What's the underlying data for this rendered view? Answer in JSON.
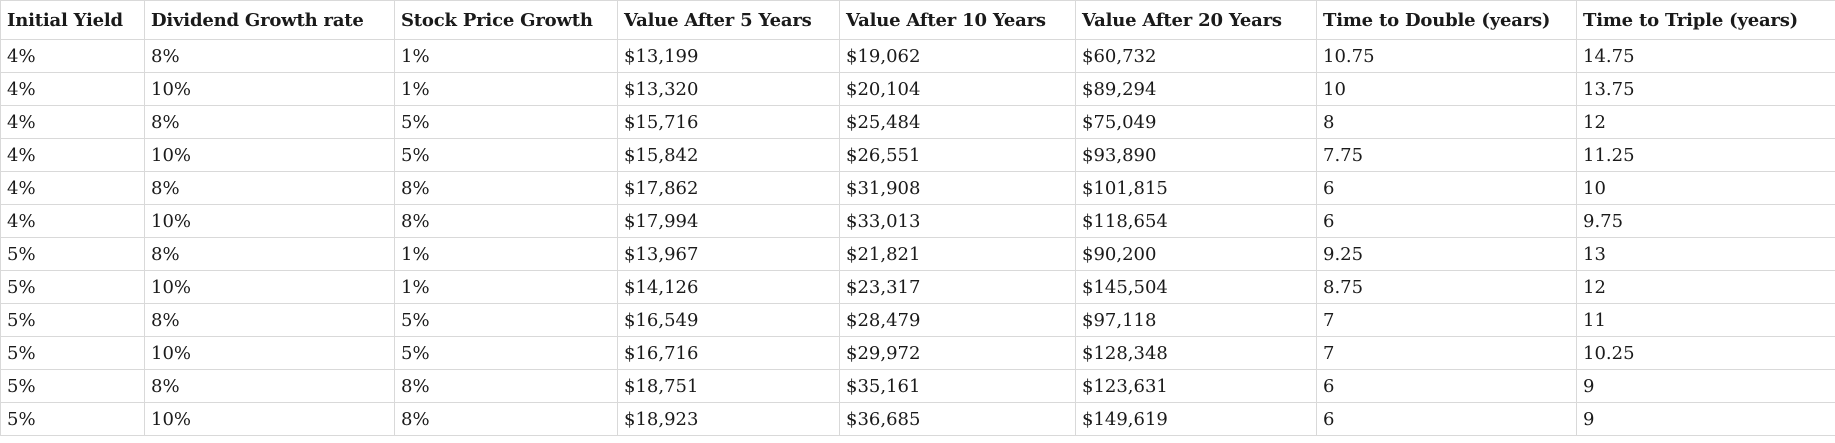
{
  "table": {
    "headers": [
      "Initial Yield",
      "Dividend Growth rate",
      "Stock Price Growth",
      "Value After 5 Years",
      "Value After 10 Years",
      "Value After 20 Years",
      "Time to Double (years)",
      "Time to Triple (years)"
    ],
    "rows": [
      [
        "4%",
        "8%",
        "1%",
        "$13,199",
        "$19,062",
        "$60,732",
        "10.75",
        "14.75"
      ],
      [
        "4%",
        "10%",
        "1%",
        "$13,320",
        "$20,104",
        "$89,294",
        "10",
        "13.75"
      ],
      [
        "4%",
        "8%",
        "5%",
        "$15,716",
        "$25,484",
        "$75,049",
        "8",
        "12"
      ],
      [
        "4%",
        "10%",
        "5%",
        "$15,842",
        "$26,551",
        "$93,890",
        "7.75",
        "11.25"
      ],
      [
        "4%",
        "8%",
        "8%",
        "$17,862",
        "$31,908",
        "$101,815",
        "6",
        "10"
      ],
      [
        "4%",
        "10%",
        "8%",
        "$17,994",
        "$33,013",
        "$118,654",
        "6",
        "9.75"
      ],
      [
        "5%",
        "8%",
        "1%",
        "$13,967",
        "$21,821",
        "$90,200",
        "9.25",
        "13"
      ],
      [
        "5%",
        "10%",
        "1%",
        "$14,126",
        "$23,317",
        "$145,504",
        "8.75",
        "12"
      ],
      [
        "5%",
        "8%",
        "5%",
        "$16,549",
        "$28,479",
        "$97,118",
        "7",
        "11"
      ],
      [
        "5%",
        "10%",
        "5%",
        "$16,716",
        "$29,972",
        "$128,348",
        "7",
        "10.25"
      ],
      [
        "5%",
        "8%",
        "8%",
        "$18,751",
        "$35,161",
        "$123,631",
        "6",
        "9"
      ],
      [
        "5%",
        "10%",
        "8%",
        "$18,923",
        "$36,685",
        "$149,619",
        "6",
        "9"
      ]
    ]
  }
}
